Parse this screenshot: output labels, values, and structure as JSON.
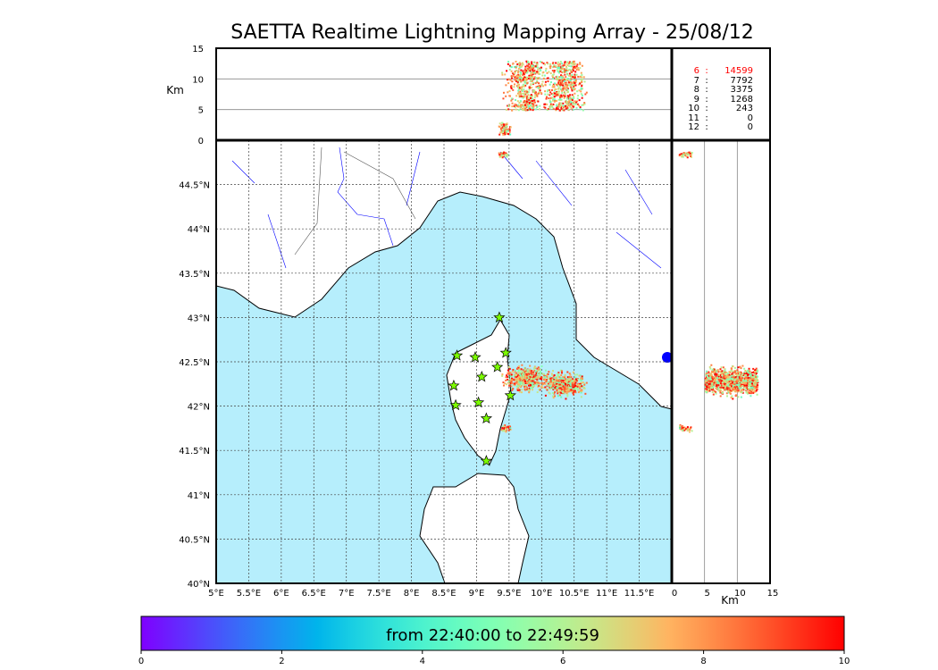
{
  "chart_data": {
    "type": "scatter",
    "title": "SAETTA Realtime Lightning Mapping Array - 25/08/12",
    "map": {
      "lon_range": [
        5,
        12
      ],
      "lat_range": [
        40,
        45
      ],
      "lon_ticks": [
        "5°E",
        "5.5°E",
        "6°E",
        "6.5°E",
        "7°E",
        "7.5°E",
        "8°E",
        "8.5°E",
        "9°E",
        "9.5°E",
        "10°E",
        "10.5°E",
        "11°E",
        "11.5°E"
      ],
      "lat_ticks": [
        "40°N",
        "40.5°N",
        "41°N",
        "41.5°N",
        "42°N",
        "42.5°N",
        "43°N",
        "43.5°N",
        "44°N",
        "44.5°N"
      ]
    },
    "altitude_panel": {
      "ylabel": "Km",
      "ylim": [
        0,
        15
      ],
      "ticks": [
        "0",
        "5",
        "10",
        "15"
      ]
    },
    "side_panel": {
      "xlabel": "Km",
      "xlim": [
        0,
        15
      ],
      "ticks": [
        "0",
        "5",
        "10",
        "15"
      ]
    },
    "stations": [
      [
        9.35,
        43.0
      ],
      [
        8.7,
        42.57
      ],
      [
        8.98,
        42.55
      ],
      [
        9.45,
        42.6
      ],
      [
        9.32,
        42.44
      ],
      [
        9.08,
        42.33
      ],
      [
        8.65,
        42.23
      ],
      [
        9.52,
        42.12
      ],
      [
        9.03,
        42.04
      ],
      [
        8.68,
        42.01
      ],
      [
        9.15,
        41.86
      ],
      [
        9.15,
        41.38
      ]
    ],
    "lightning_clusters": [
      {
        "lon": 9.75,
        "lat": 42.32,
        "alt_range": [
          5,
          13
        ]
      },
      {
        "lon": 10.35,
        "lat": 42.25,
        "alt_range": [
          5,
          13
        ]
      },
      {
        "lon": 9.45,
        "lat": 41.76,
        "alt_range": [
          1,
          3
        ]
      },
      {
        "lon": 9.4,
        "lat": 44.85,
        "alt_range": [
          1,
          3
        ]
      }
    ],
    "stats": [
      {
        "n": "6",
        "v": "14599",
        "highlight": true
      },
      {
        "n": "7",
        "v": "7792"
      },
      {
        "n": "8",
        "v": "3375"
      },
      {
        "n": "9",
        "v": "1268"
      },
      {
        "n": "10",
        "v": "243"
      },
      {
        "n": "11",
        "v": "0"
      },
      {
        "n": "12",
        "v": "0"
      }
    ],
    "colorbar": {
      "label": "from 22:40:00 to 22:49:59",
      "range": [
        0,
        10
      ],
      "ticks": [
        "0",
        "2",
        "4",
        "6",
        "8",
        "10"
      ],
      "colormap": "rainbow"
    }
  },
  "colors": {
    "sea": "#b6eefc",
    "land": "#ffffff",
    "star": "#7cfc00",
    "highlight": "#ff0000",
    "river": "#0000ff"
  }
}
